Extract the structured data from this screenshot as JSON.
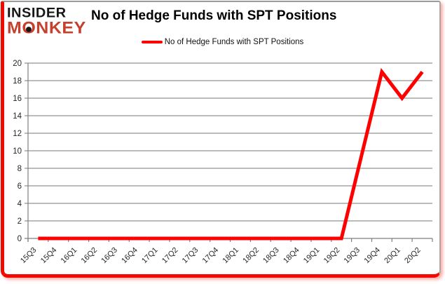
{
  "header": {
    "logo": {
      "line1": "INSIDER",
      "line2": "MONKEY",
      "line1_color": "#161616",
      "line2_color": "#c7402e"
    },
    "title": "No of Hedge Funds with SPT Positions"
  },
  "legend": {
    "label": "No of Hedge Funds with SPT Positions",
    "swatch_color": "#ff0000"
  },
  "chart_data": {
    "type": "line",
    "title": "No of Hedge Funds with SPT Positions",
    "categories": [
      "15Q3",
      "15Q4",
      "16Q1",
      "16Q2",
      "16Q3",
      "16Q4",
      "17Q1",
      "17Q2",
      "17Q3",
      "17Q4",
      "18Q1",
      "18Q2",
      "18Q3",
      "18Q4",
      "19Q1",
      "19Q2",
      "19Q3",
      "19Q4",
      "20Q1",
      "20Q2"
    ],
    "series": [
      {
        "name": "No of Hedge Funds with SPT Positions",
        "color": "#ff0000",
        "values": [
          0,
          0,
          0,
          0,
          0,
          0,
          0,
          0,
          0,
          0,
          0,
          0,
          0,
          0,
          0,
          0,
          9.5,
          19,
          16,
          19
        ]
      }
    ],
    "xlabel": "",
    "ylabel": "",
    "ylim": [
      0,
      20
    ],
    "ytick_interval": 2,
    "grid": true,
    "legend_position": "top-center",
    "axis_color": "#7f7f7f",
    "gridline_color": "#929292",
    "tick_label_color": "#262626"
  }
}
